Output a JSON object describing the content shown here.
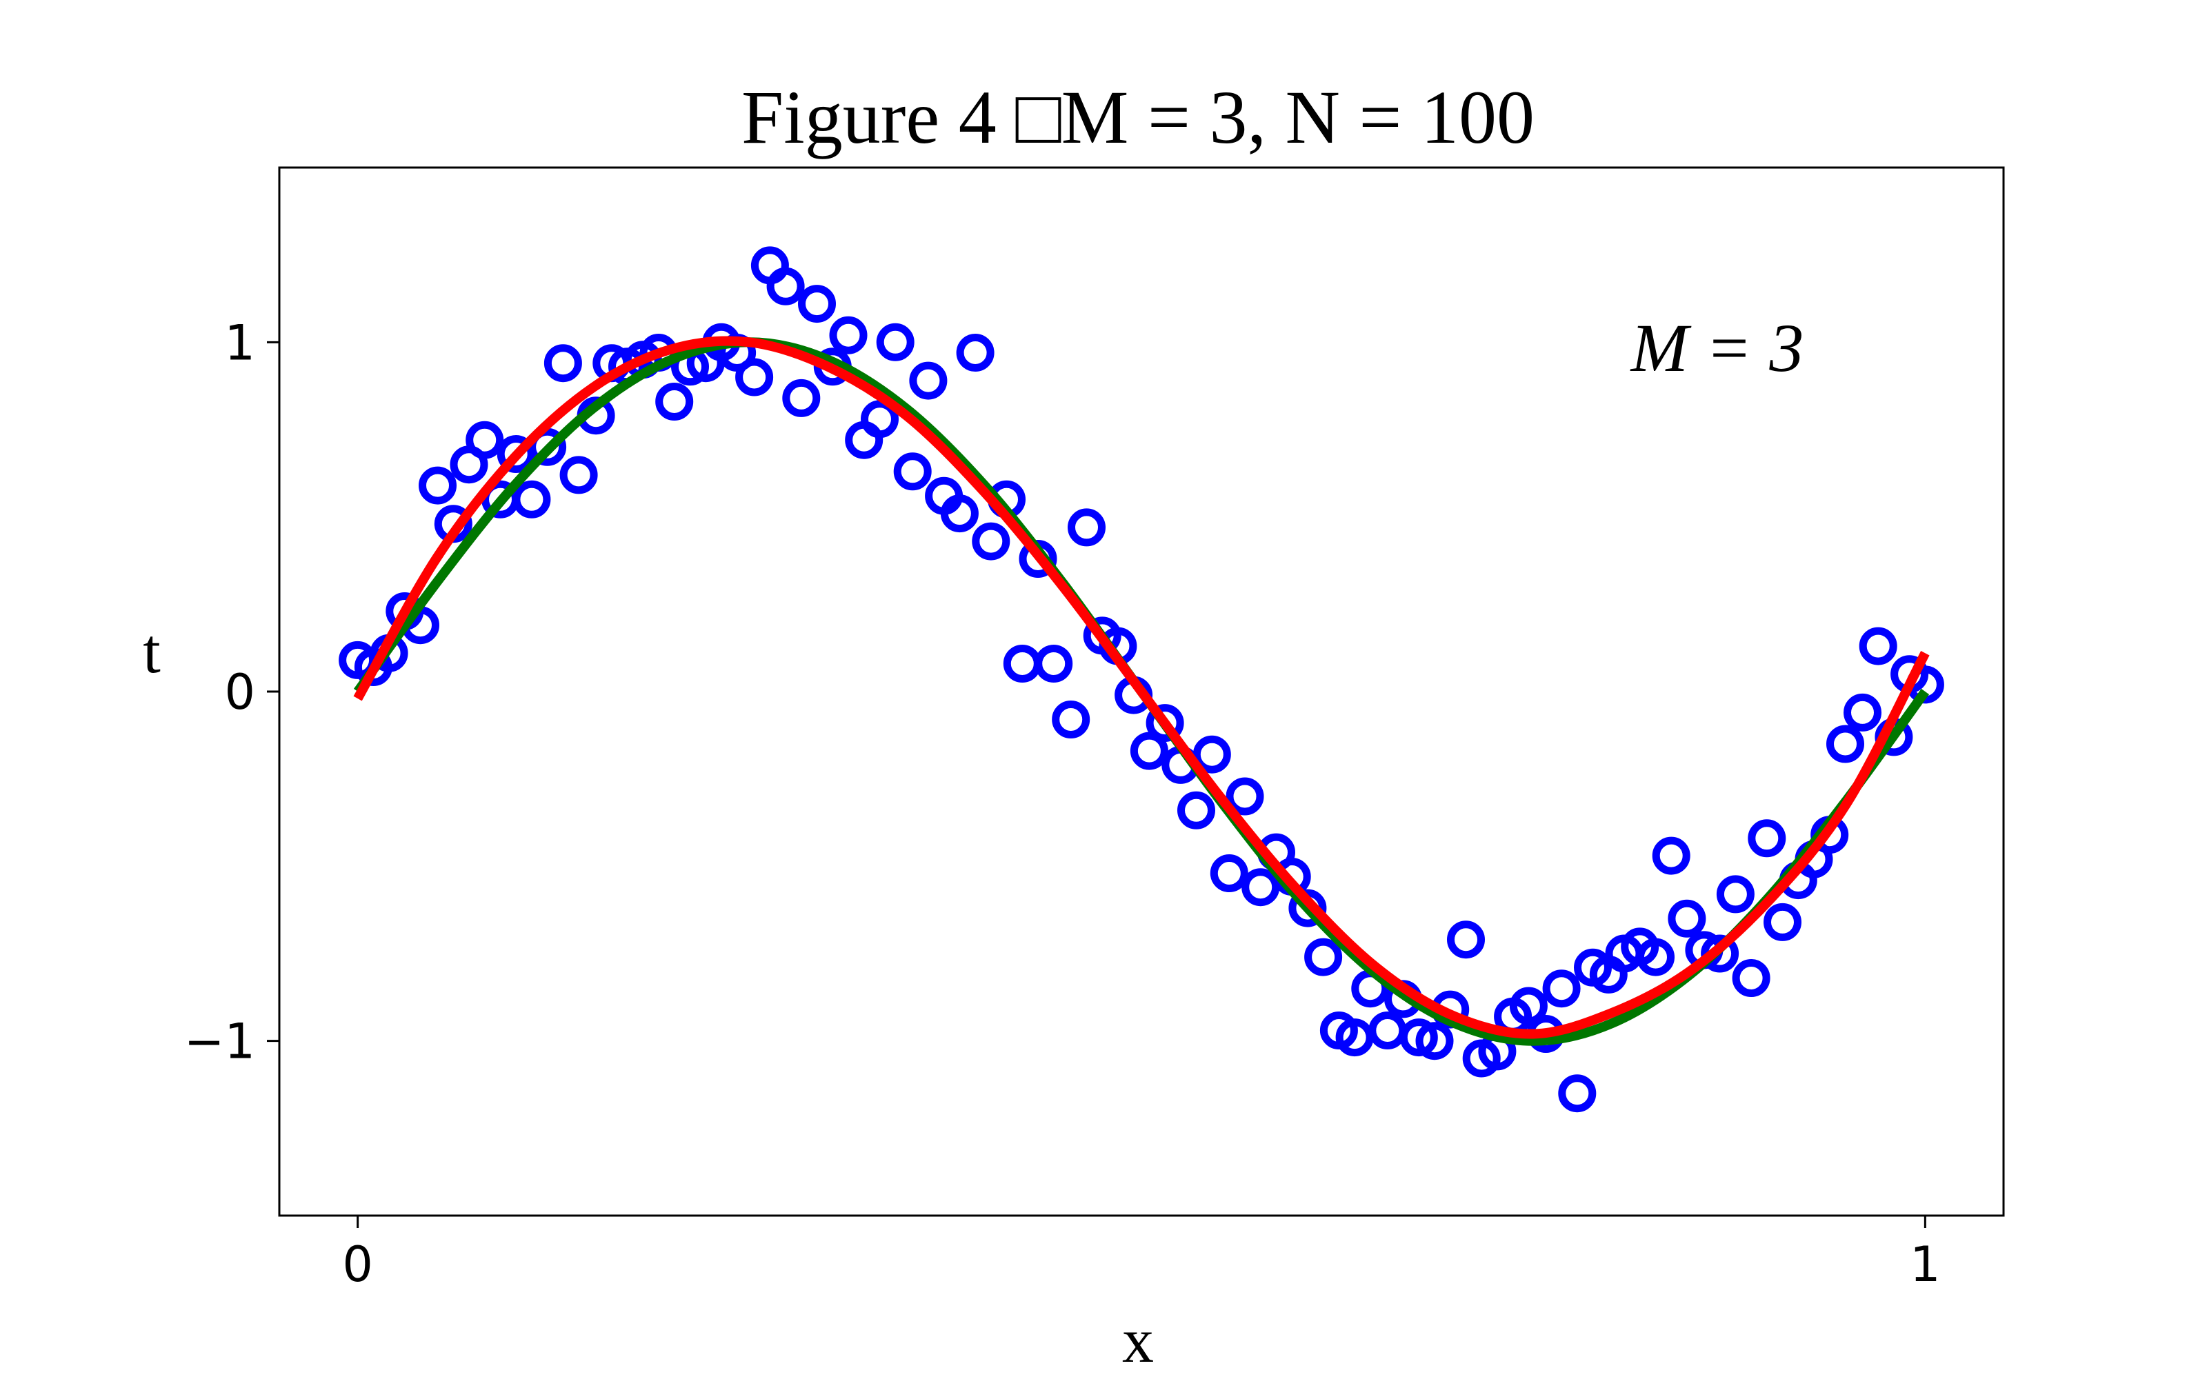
{
  "chart_data": {
    "type": "scatter",
    "title": "Figure 4 □M = 3, N = 100",
    "xlabel": "x",
    "ylabel": "t",
    "xlim": [
      -0.05,
      1.05
    ],
    "ylim": [
      -1.5,
      1.5
    ],
    "xticks": [
      0,
      1
    ],
    "xtick_labels": [
      "0",
      "1"
    ],
    "yticks": [
      -1,
      0,
      1
    ],
    "ytick_labels": [
      "−1",
      "0",
      "1"
    ],
    "grid": false,
    "annotation": "M = 3",
    "colors": {
      "points": "#0000ff",
      "true_curve": "#007700",
      "fit_curve": "#ff0000"
    },
    "series": [
      {
        "kind": "points",
        "marker": "open-circle",
        "x": [
          0.0,
          0.01,
          0.02,
          0.03,
          0.04,
          0.051,
          0.061,
          0.071,
          0.081,
          0.091,
          0.101,
          0.111,
          0.121,
          0.131,
          0.141,
          0.152,
          0.162,
          0.172,
          0.182,
          0.192,
          0.202,
          0.212,
          0.222,
          0.232,
          0.242,
          0.253,
          0.263,
          0.273,
          0.283,
          0.293,
          0.303,
          0.313,
          0.323,
          0.333,
          0.343,
          0.354,
          0.364,
          0.374,
          0.384,
          0.394,
          0.404,
          0.414,
          0.424,
          0.434,
          0.444,
          0.455,
          0.465,
          0.475,
          0.485,
          0.495,
          0.505,
          0.515,
          0.525,
          0.535,
          0.545,
          0.556,
          0.566,
          0.576,
          0.586,
          0.596,
          0.606,
          0.616,
          0.626,
          0.636,
          0.646,
          0.657,
          0.667,
          0.677,
          0.687,
          0.697,
          0.707,
          0.717,
          0.727,
          0.737,
          0.747,
          0.758,
          0.768,
          0.778,
          0.788,
          0.798,
          0.808,
          0.818,
          0.828,
          0.838,
          0.848,
          0.859,
          0.869,
          0.879,
          0.889,
          0.899,
          0.909,
          0.919,
          0.929,
          0.939,
          0.949,
          0.96,
          0.97,
          0.98,
          0.99,
          1.0
        ],
        "y": [
          0.09,
          0.07,
          0.11,
          0.23,
          0.19,
          0.59,
          0.48,
          0.65,
          0.72,
          0.55,
          0.68,
          0.55,
          0.7,
          0.94,
          0.62,
          0.79,
          0.94,
          0.93,
          0.95,
          0.97,
          0.83,
          0.93,
          0.94,
          1.0,
          0.97,
          0.9,
          1.22,
          1.16,
          0.84,
          1.11,
          0.93,
          1.02,
          0.72,
          0.78,
          1.0,
          0.63,
          0.89,
          0.56,
          0.51,
          0.97,
          0.43,
          0.55,
          0.08,
          0.38,
          0.08,
          -0.08,
          0.47,
          0.16,
          0.13,
          -0.01,
          -0.17,
          -0.09,
          -0.21,
          -0.34,
          -0.18,
          -0.52,
          -0.3,
          -0.56,
          -0.46,
          -0.53,
          -0.62,
          -0.76,
          -0.97,
          -0.99,
          -0.85,
          -0.97,
          -0.88,
          -0.99,
          -1.0,
          -0.91,
          -0.71,
          -1.05,
          -1.03,
          -0.93,
          -0.9,
          -0.98,
          -0.85,
          -1.15,
          -0.79,
          -0.81,
          -0.75,
          -0.73,
          -0.76,
          -0.47,
          -0.65,
          -0.74,
          -0.75,
          -0.58,
          -0.82,
          -0.42,
          -0.66,
          -0.54,
          -0.48,
          -0.41,
          -0.15,
          -0.06,
          0.13,
          -0.13,
          0.05,
          0.02
        ]
      },
      {
        "kind": "line",
        "note": "true curve",
        "x": [
          0.0,
          0.05,
          0.1,
          0.15,
          0.2,
          0.25,
          0.3,
          0.35,
          0.4,
          0.45,
          0.5,
          0.55,
          0.6,
          0.65,
          0.7,
          0.75,
          0.8,
          0.85,
          0.9,
          0.95,
          1.0
        ],
        "y": [
          0.0,
          0.31,
          0.59,
          0.81,
          0.95,
          1.0,
          0.95,
          0.81,
          0.59,
          0.31,
          0.0,
          -0.31,
          -0.59,
          -0.81,
          -0.95,
          -1.0,
          -0.95,
          -0.81,
          -0.59,
          -0.31,
          0.0
        ]
      },
      {
        "kind": "line",
        "note": "fitted polynomial",
        "x": [
          0.0,
          0.05,
          0.1,
          0.15,
          0.2,
          0.25,
          0.3,
          0.35,
          0.4,
          0.45,
          0.5,
          0.55,
          0.6,
          0.65,
          0.7,
          0.75,
          0.8,
          0.85,
          0.9,
          0.95,
          1.0
        ],
        "y": [
          -0.02,
          0.38,
          0.67,
          0.87,
          0.98,
          1.0,
          0.93,
          0.79,
          0.57,
          0.3,
          0.0,
          -0.3,
          -0.57,
          -0.79,
          -0.93,
          -0.98,
          -0.92,
          -0.8,
          -0.6,
          -0.32,
          0.11
        ]
      }
    ]
  }
}
